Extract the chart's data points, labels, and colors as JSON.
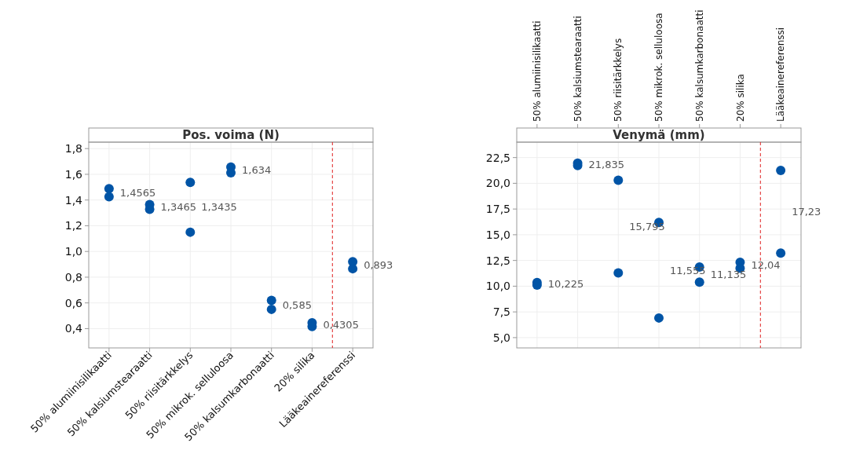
{
  "chart_data": [
    {
      "type": "scatter",
      "title": "Pos. voima (N)",
      "categories": [
        "50% alumiinisilikaatti",
        "50% kalsiumstearaatti",
        "50% riisitärkkelys",
        "50% mikrok. selluloosa",
        "50% kalsumkarbonaatti",
        "20% silika",
        "Lääkeainereferenssi"
      ],
      "series": [
        {
          "color": "#0054a6",
          "values": [
            1.488,
            1.365,
            1.537,
            1.656,
            0.62,
            0.445,
            0.92
          ]
        },
        {
          "color": "#0054a6",
          "values": [
            1.425,
            1.328,
            1.15,
            1.612,
            0.55,
            0.416,
            0.866
          ]
        }
      ],
      "ylim": [
        0.25,
        1.85
      ],
      "yticks": [
        {
          "value": 0.4,
          "label": "0,4"
        },
        {
          "value": 0.6,
          "label": "0,6"
        },
        {
          "value": 0.8,
          "label": "0,8"
        },
        {
          "value": 1.0,
          "label": "1,0"
        },
        {
          "value": 1.2,
          "label": "1,2"
        },
        {
          "value": 1.4,
          "label": "1,4"
        },
        {
          "value": 1.6,
          "label": "1,6"
        },
        {
          "value": 1.8,
          "label": "1,8"
        }
      ],
      "grid": true,
      "marker": "circle",
      "annotations": [
        "1,4565",
        "1,3465",
        "1,3435",
        "1,634",
        "0,585",
        "0,4305",
        "0,893"
      ]
    },
    {
      "type": "scatter",
      "title": "Venymä (mm)",
      "categories": [
        "50% alumiinisilikaatti",
        "50% kalsiumstearaatti",
        "50% riisitärkkelys",
        "50% mikrok. selluloosa",
        "50% kalsumkarbonaatti",
        "20% silika",
        "Lääkeainereferenssi"
      ],
      "series": [
        {
          "color": "#0054a6",
          "values": [
            10.35,
            21.95,
            20.3,
            16.2,
            11.87,
            12.33,
            21.25
          ]
        },
        {
          "color": "#0054a6",
          "values": [
            10.1,
            21.72,
            11.29,
            6.91,
            10.4,
            11.75,
            13.21
          ]
        }
      ],
      "ylim": [
        4,
        24
      ],
      "yticks": [
        {
          "value": 5,
          "label": "5,0"
        },
        {
          "value": 7.5,
          "label": "7,5"
        },
        {
          "value": 10,
          "label": "10,0"
        },
        {
          "value": 12.5,
          "label": "12,5"
        },
        {
          "value": 15,
          "label": "15,0"
        },
        {
          "value": 17.5,
          "label": "17,5"
        },
        {
          "value": 20,
          "label": "20,0"
        },
        {
          "value": 22.5,
          "label": "22,5"
        }
      ],
      "grid": true,
      "marker": "circle",
      "annotations": [
        "10,225",
        "21,835",
        "15,795",
        "11,555",
        "11,135",
        "12,04",
        "17,23"
      ]
    }
  ]
}
